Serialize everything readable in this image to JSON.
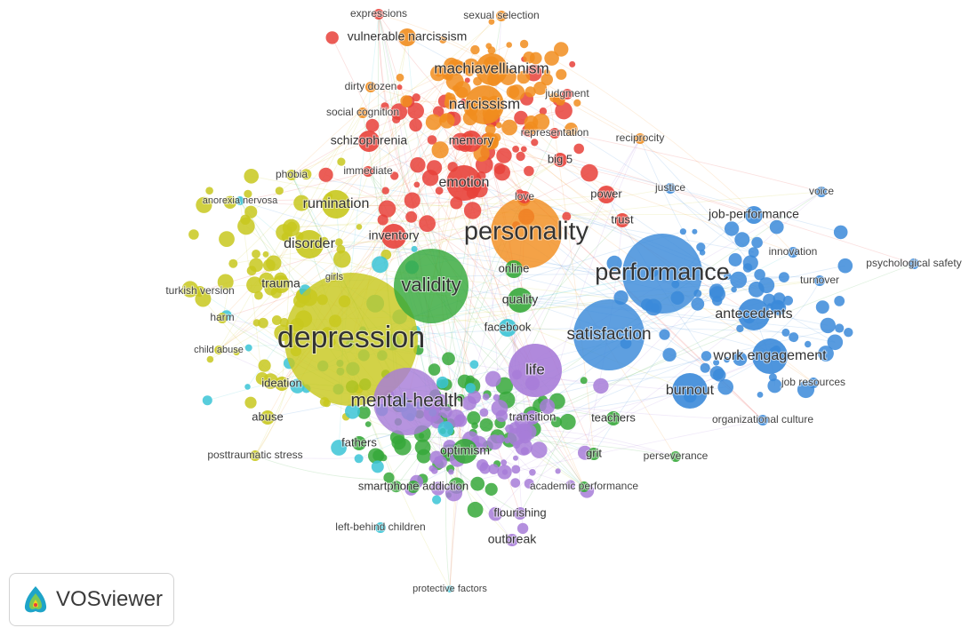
{
  "app": {
    "name": "VOSviewer"
  },
  "colors": {
    "red": "#e8413a",
    "orange": "#f18d1e",
    "yellow": "#c8c81e",
    "green": "#36a83a",
    "blue": "#3b8ad9",
    "purple": "#a77cd8",
    "cyan": "#3bc4d6",
    "brown": "#a8766a"
  },
  "keywords": [
    {
      "id": "depression",
      "text": "depression",
      "cluster": "yellow",
      "size": "xl"
    },
    {
      "id": "personality",
      "text": "personality",
      "cluster": "orange",
      "size": "xl"
    },
    {
      "id": "performance",
      "text": "performance",
      "cluster": "blue",
      "size": "xl"
    },
    {
      "id": "validity",
      "text": "validity",
      "cluster": "green",
      "size": "l"
    },
    {
      "id": "mental_health",
      "text": "mental-health",
      "cluster": "purple",
      "size": "l"
    },
    {
      "id": "satisfaction",
      "text": "satisfaction",
      "cluster": "blue",
      "size": "l"
    },
    {
      "id": "life",
      "text": "life",
      "cluster": "purple",
      "size": "m"
    },
    {
      "id": "narcissism",
      "text": "narcissism",
      "cluster": "orange",
      "size": "m"
    },
    {
      "id": "machiavellianism",
      "text": "machiavellianism",
      "cluster": "orange",
      "size": "m"
    },
    {
      "id": "emotion",
      "text": "emotion",
      "cluster": "red",
      "size": "m"
    },
    {
      "id": "rumination",
      "text": "rumination",
      "cluster": "yellow",
      "size": "m"
    },
    {
      "id": "disorder",
      "text": "disorder",
      "cluster": "yellow",
      "size": "m"
    },
    {
      "id": "antecedents",
      "text": "antecedents",
      "cluster": "blue",
      "size": "m"
    },
    {
      "id": "work_engagement",
      "text": "work engagement",
      "cluster": "blue",
      "size": "m"
    },
    {
      "id": "burnout",
      "text": "burnout",
      "cluster": "blue",
      "size": "m"
    },
    {
      "id": "quality",
      "text": "quality",
      "cluster": "green",
      "size": "ms"
    },
    {
      "id": "inventory",
      "text": "inventory",
      "cluster": "red",
      "size": "ms"
    },
    {
      "id": "schizophrenia",
      "text": "schizophrenia",
      "cluster": "red",
      "size": "ms"
    },
    {
      "id": "memory",
      "text": "memory",
      "cluster": "red",
      "size": "ms"
    },
    {
      "id": "job_performance",
      "text": "job-performance",
      "cluster": "blue",
      "size": "ms"
    },
    {
      "id": "trauma",
      "text": "trauma",
      "cluster": "yellow",
      "size": "ms"
    },
    {
      "id": "optimism",
      "text": "optimism",
      "cluster": "green",
      "size": "ms"
    },
    {
      "id": "vulnerable_narcissism",
      "text": "vulnerable narcissism",
      "cluster": "orange",
      "size": "ms"
    },
    {
      "id": "power",
      "text": "power",
      "cluster": "red",
      "size": "s"
    },
    {
      "id": "online",
      "text": "online",
      "cluster": "green",
      "size": "s"
    },
    {
      "id": "facebook",
      "text": "facebook",
      "cluster": "cyan",
      "size": "s"
    },
    {
      "id": "ideation",
      "text": "ideation",
      "cluster": "yellow",
      "size": "s"
    },
    {
      "id": "abuse",
      "text": "abuse",
      "cluster": "yellow",
      "size": "s"
    },
    {
      "id": "fathers",
      "text": "fathers",
      "cluster": "green",
      "size": "s"
    },
    {
      "id": "transition",
      "text": "transition",
      "cluster": "purple",
      "size": "s"
    },
    {
      "id": "teachers",
      "text": "teachers",
      "cluster": "green",
      "size": "s"
    },
    {
      "id": "grit",
      "text": "grit",
      "cluster": "green",
      "size": "s"
    },
    {
      "id": "outbreak",
      "text": "outbreak",
      "cluster": "purple",
      "size": "s"
    },
    {
      "id": "smartphone_addiction",
      "text": "smartphone addiction",
      "cluster": "green",
      "size": "s"
    },
    {
      "id": "flourishing",
      "text": "flourishing",
      "cluster": "purple",
      "size": "s"
    },
    {
      "id": "trust",
      "text": "trust",
      "cluster": "red",
      "size": "s"
    },
    {
      "id": "big5",
      "text": "big 5",
      "cluster": "red",
      "size": "s"
    },
    {
      "id": "love",
      "text": "love",
      "cluster": "red",
      "size": "xs"
    },
    {
      "id": "social_cognition",
      "text": "social cognition",
      "cluster": "orange",
      "size": "xs"
    },
    {
      "id": "dirty_dozen",
      "text": "dirty dozen",
      "cluster": "orange",
      "size": "xs"
    },
    {
      "id": "judgment",
      "text": "judgment",
      "cluster": "red",
      "size": "xs"
    },
    {
      "id": "representation",
      "text": "representation",
      "cluster": "red",
      "size": "xs"
    },
    {
      "id": "reciprocity",
      "text": "reciprocity",
      "cluster": "orange",
      "size": "xs"
    },
    {
      "id": "expressions",
      "text": "expressions",
      "cluster": "red",
      "size": "xs"
    },
    {
      "id": "sexual_selection",
      "text": "sexual selection",
      "cluster": "orange",
      "size": "xs"
    },
    {
      "id": "immediate",
      "text": "immediate",
      "cluster": "red",
      "size": "xs"
    },
    {
      "id": "phobia",
      "text": "phobia",
      "cluster": "yellow",
      "size": "xs"
    },
    {
      "id": "anorexia_nervosa",
      "text": "anorexia nervosa",
      "cluster": "cyan",
      "size": "xxs"
    },
    {
      "id": "justice",
      "text": "justice",
      "cluster": "blue",
      "size": "xs"
    },
    {
      "id": "voice",
      "text": "voice",
      "cluster": "blue",
      "size": "xs"
    },
    {
      "id": "innovation",
      "text": "innovation",
      "cluster": "blue",
      "size": "xs"
    },
    {
      "id": "psychological_safety",
      "text": "psychological safety",
      "cluster": "blue",
      "size": "xs"
    },
    {
      "id": "turnover",
      "text": "turnover",
      "cluster": "blue",
      "size": "xs"
    },
    {
      "id": "job_resources",
      "text": "job resources",
      "cluster": "blue",
      "size": "xs"
    },
    {
      "id": "organizational_culture",
      "text": "organizational culture",
      "cluster": "blue",
      "size": "xs"
    },
    {
      "id": "perseverance",
      "text": "perseverance",
      "cluster": "green",
      "size": "xs"
    },
    {
      "id": "academic_performance",
      "text": "academic performance",
      "cluster": "green",
      "size": "xs"
    },
    {
      "id": "left_behind_children",
      "text": "left-behind children",
      "cluster": "cyan",
      "size": "xs"
    },
    {
      "id": "protective_factors",
      "text": "protective factors",
      "cluster": "cyan",
      "size": "xxs"
    },
    {
      "id": "posttraumatic_stress",
      "text": "posttraumatic stress",
      "cluster": "yellow",
      "size": "xs"
    },
    {
      "id": "child_abuse",
      "text": "child abuse",
      "cluster": "yellow",
      "size": "xxs"
    },
    {
      "id": "harm",
      "text": "harm",
      "cluster": "yellow",
      "size": "xs"
    },
    {
      "id": "turkish_version",
      "text": "turkish version",
      "cluster": "yellow",
      "size": "xs"
    },
    {
      "id": "girls",
      "text": "girls",
      "cluster": "yellow",
      "size": "xxs"
    }
  ]
}
